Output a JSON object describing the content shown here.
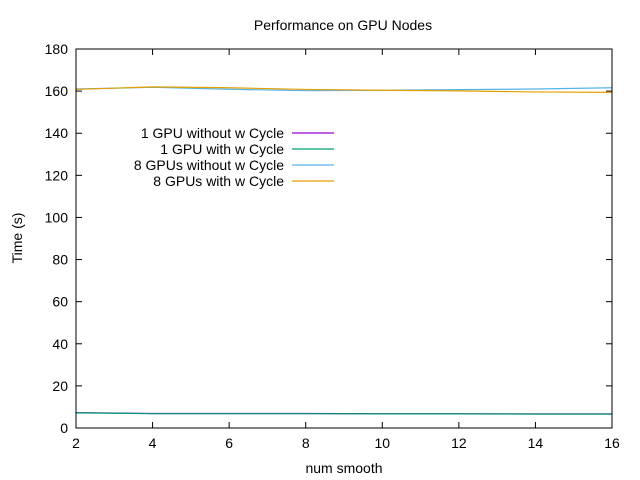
{
  "chart_data": {
    "type": "line",
    "title": "Performance on GPU Nodes",
    "xlabel": "num smooth",
    "ylabel": "Time (s)",
    "xlim": [
      2,
      16
    ],
    "ylim": [
      0,
      180
    ],
    "xticks": [
      2,
      4,
      6,
      8,
      10,
      12,
      14,
      16
    ],
    "yticks": [
      0,
      20,
      40,
      60,
      80,
      100,
      120,
      140,
      160,
      180
    ],
    "grid": false,
    "legend_position": "left-center-upper",
    "x": [
      2,
      4,
      6,
      8,
      10,
      12,
      14,
      16
    ],
    "series": [
      {
        "name": "1 GPU without w Cycle",
        "color": "#9400d3",
        "values": [
          7.3,
          6.9,
          6.9,
          6.9,
          6.8,
          6.8,
          6.7,
          6.7
        ]
      },
      {
        "name": "1 GPU with w Cycle",
        "color": "#009e73",
        "values": [
          7.2,
          6.8,
          6.8,
          6.8,
          6.7,
          6.7,
          6.6,
          6.6
        ]
      },
      {
        "name": "8 GPUs without w Cycle",
        "color": "#56b4e9",
        "values": [
          161.0,
          161.8,
          160.9,
          160.2,
          160.4,
          160.7,
          161.0,
          161.6
        ]
      },
      {
        "name": "8 GPUs with w Cycle",
        "color": "#e69f00",
        "values": [
          160.8,
          162.0,
          161.6,
          160.8,
          160.4,
          160.1,
          159.6,
          159.4
        ]
      }
    ]
  }
}
